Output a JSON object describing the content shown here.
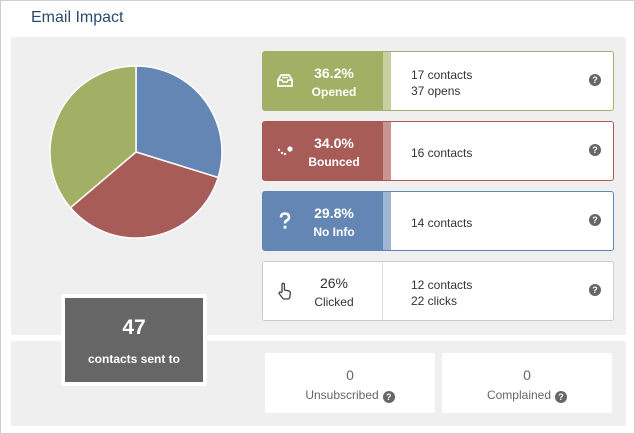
{
  "title": "Email Impact",
  "chart_data": {
    "type": "pie",
    "slices": [
      {
        "label": "Opened",
        "value": 36.2,
        "color": "#a2b065"
      },
      {
        "label": "Bounced",
        "value": 34.0,
        "color": "#a85c57"
      },
      {
        "label": "No Info",
        "value": 29.8,
        "color": "#6486b4"
      }
    ]
  },
  "sent": {
    "count": "47",
    "label": "contacts sent to"
  },
  "rows": {
    "opened": {
      "pct": "36.2%",
      "label": "Opened",
      "line1": "17 contacts",
      "line2": "37 opens",
      "icon": "inbox-icon"
    },
    "bounced": {
      "pct": "34.0%",
      "label": "Bounced",
      "line1": "16 contacts",
      "icon": "bounce-icon"
    },
    "noinfo": {
      "pct": "29.8%",
      "label": "No Info",
      "line1": "14 contacts",
      "icon": "question-icon"
    },
    "clicked": {
      "pct": "26%",
      "label": "Clicked",
      "line1": "12 contacts",
      "line2": "22 clicks",
      "icon": "pointer-hand-icon"
    }
  },
  "help_glyph": "?",
  "unsubscribed": {
    "count": "0",
    "label": "Unsubscribed"
  },
  "complained": {
    "count": "0",
    "label": "Complained"
  }
}
